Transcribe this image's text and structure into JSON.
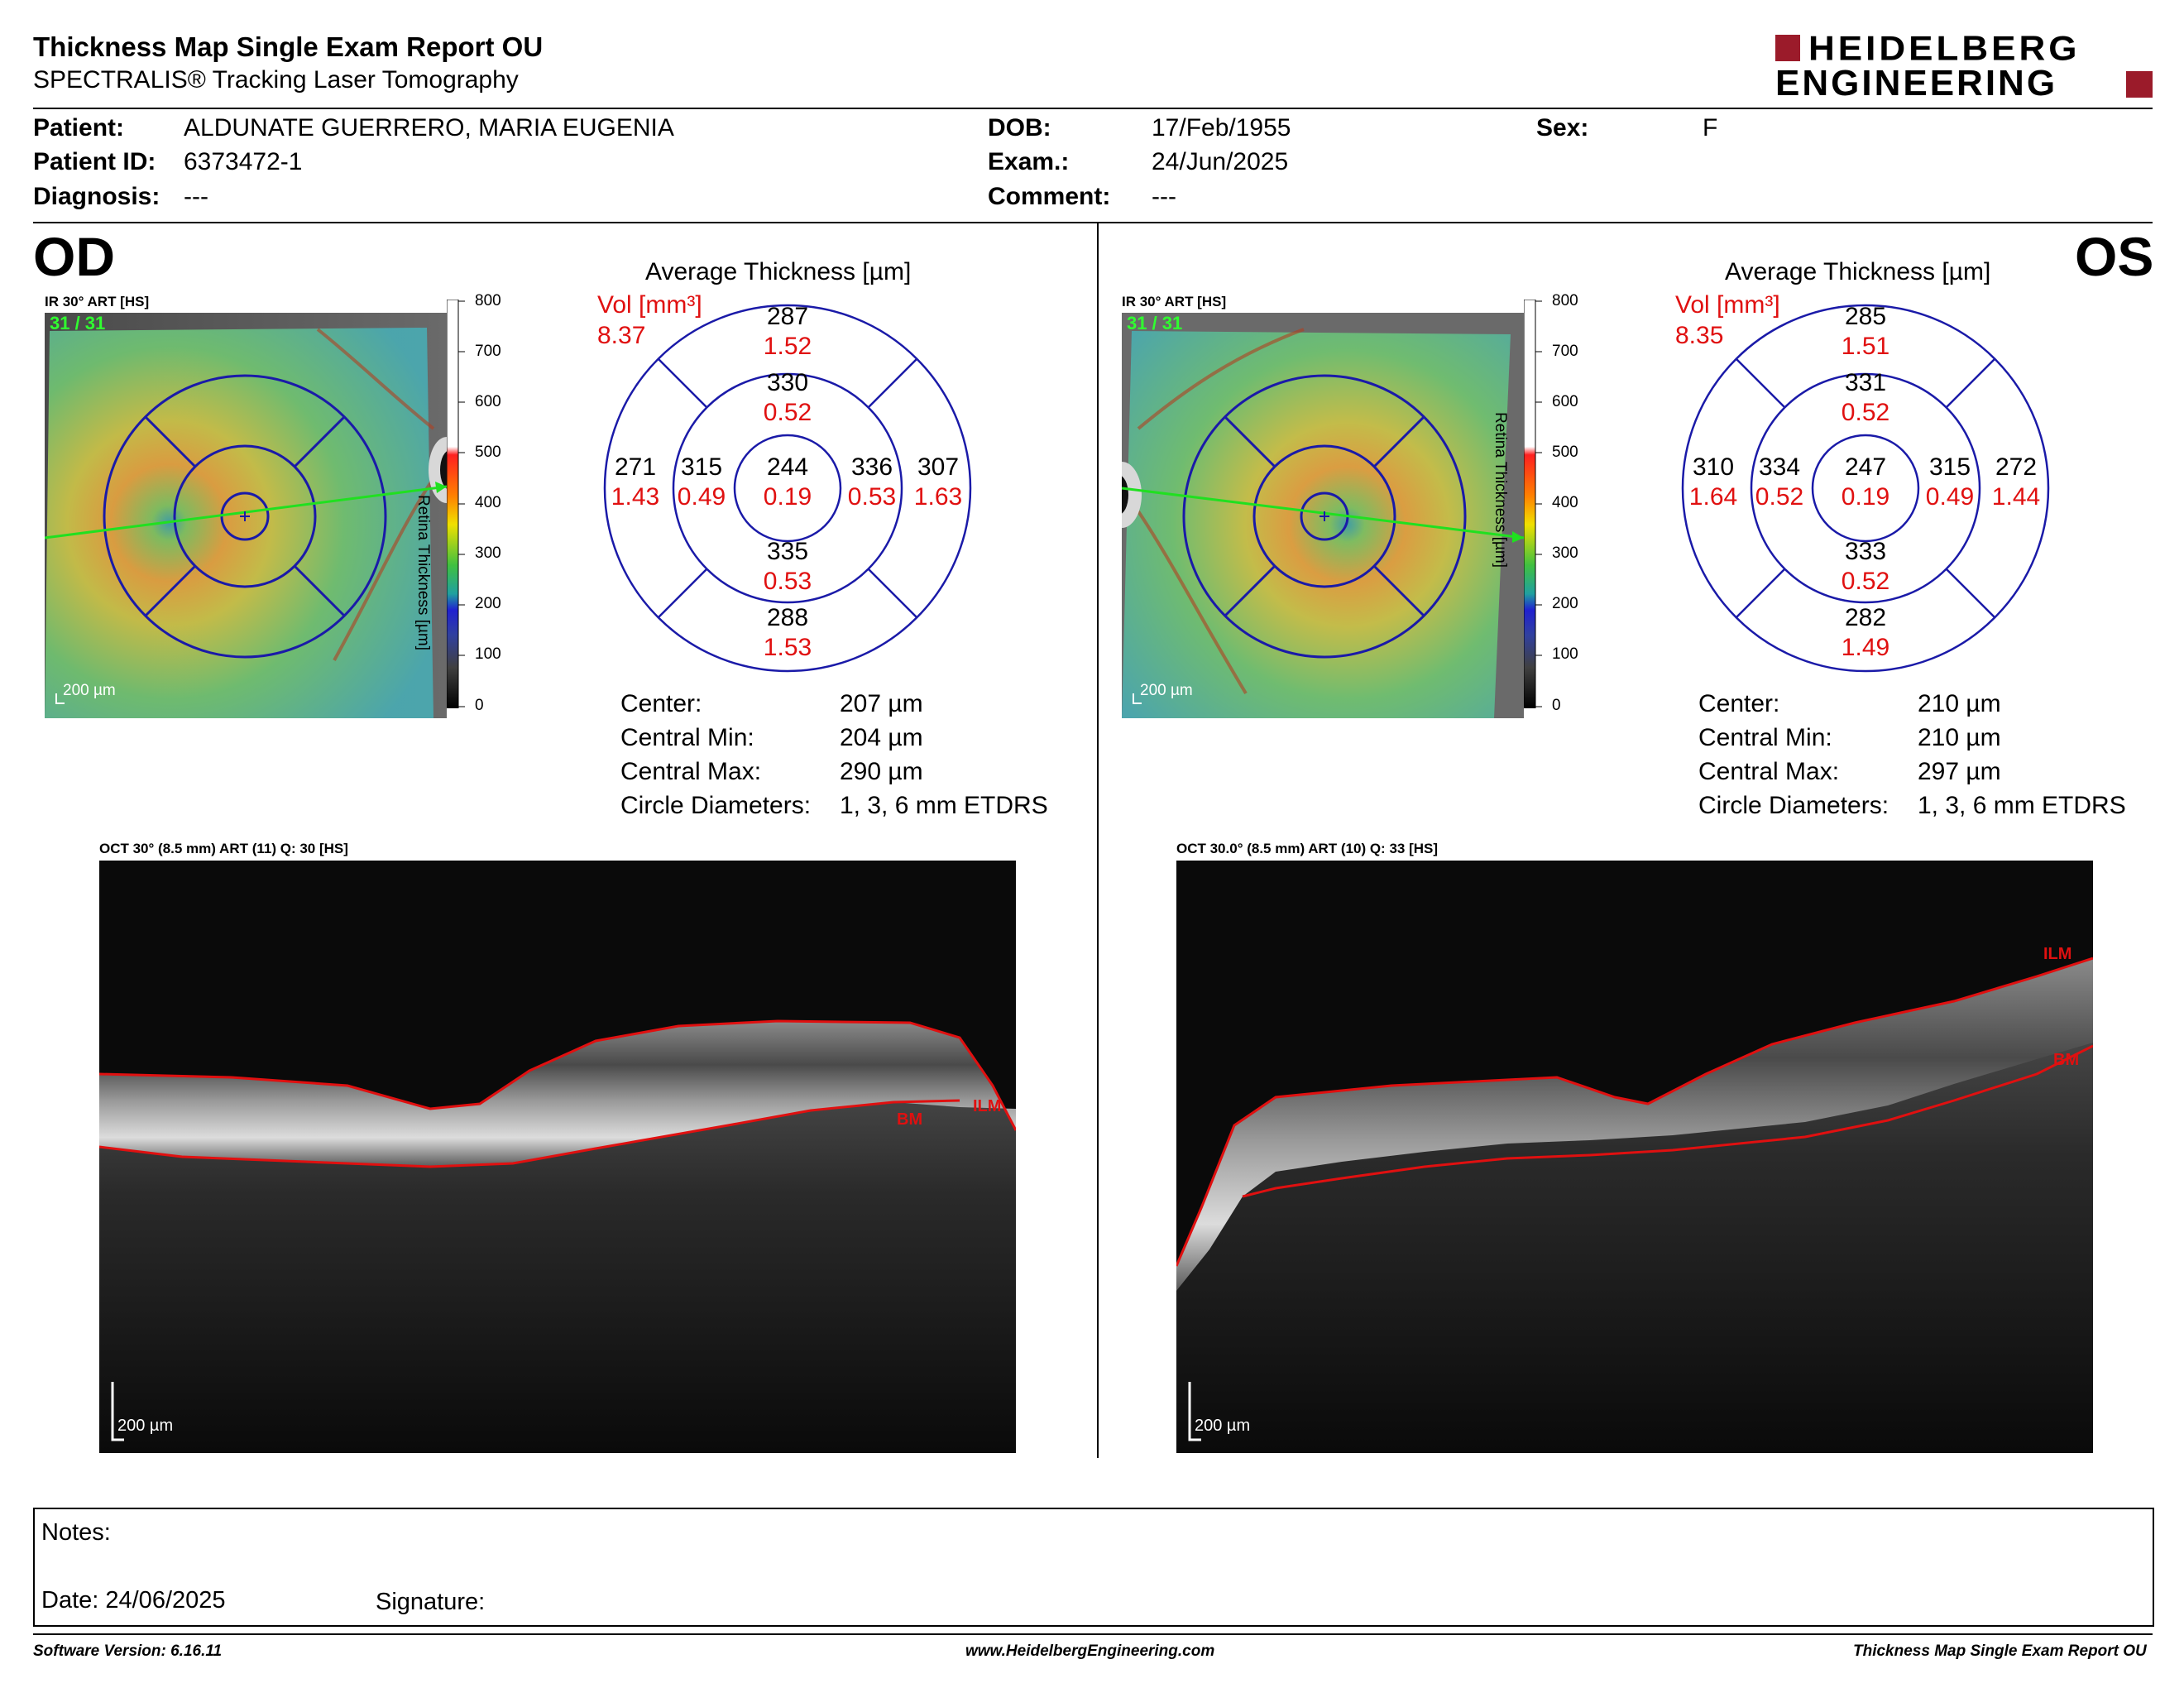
{
  "header": {
    "title": "Thickness Map Single Exam Report OU",
    "subtitle": "SPECTRALIS® Tracking Laser Tomography",
    "logo_line1": "HEIDELBERG",
    "logo_line2": "ENGINEERING"
  },
  "patient": {
    "patient_label": "Patient:",
    "patient_value": "ALDUNATE GUERRERO, MARIA EUGENIA",
    "id_label": "Patient ID:",
    "id_value": "6373472-1",
    "diagnosis_label": "Diagnosis:",
    "diagnosis_value": "---",
    "dob_label": "DOB:",
    "dob_value": "17/Feb/1955",
    "exam_label": "Exam.:",
    "exam_value": "24/Jun/2025",
    "comment_label": "Comment:",
    "comment_value": "---",
    "sex_label": "Sex:",
    "sex_value": "F"
  },
  "od": {
    "eye": "OD",
    "ir_label": "IR 30° ART [HS]",
    "ir_count": "31 / 31",
    "scale_label": "200 µm",
    "avg_title": "Average Thickness [µm]",
    "vol_label": "Vol [mm³]",
    "vol_value": "8.37",
    "sectors": {
      "center_t": "244",
      "center_v": "0.19",
      "inner_sup_t": "330",
      "inner_sup_v": "0.52",
      "inner_inf_t": "335",
      "inner_inf_v": "0.53",
      "inner_left_t": "315",
      "inner_left_v": "0.49",
      "inner_right_t": "336",
      "inner_right_v": "0.53",
      "outer_sup_t": "287",
      "outer_sup_v": "1.52",
      "outer_inf_t": "288",
      "outer_inf_v": "1.53",
      "outer_left_t": "271",
      "outer_left_v": "1.43",
      "outer_right_t": "307",
      "outer_right_v": "1.63"
    },
    "stats": {
      "center_label": "Center:",
      "center_value": "207 µm",
      "min_label": "Central Min:",
      "min_value": "204 µm",
      "max_label": "Central Max:",
      "max_value": "290 µm",
      "circ_label": "Circle Diameters:",
      "circ_value": "1, 3, 6 mm ETDRS"
    },
    "oct_label": "OCT 30° (8.5 mm) ART (11) Q: 30 [HS]",
    "oct_scale": "200 µm",
    "ilm": "ILM",
    "bm": "BM"
  },
  "os": {
    "eye": "OS",
    "ir_label": "IR 30° ART [HS]",
    "ir_count": "31 / 31",
    "scale_label": "200 µm",
    "avg_title": "Average Thickness [µm]",
    "vol_label": "Vol [mm³]",
    "vol_value": "8.35",
    "sectors": {
      "center_t": "247",
      "center_v": "0.19",
      "inner_sup_t": "331",
      "inner_sup_v": "0.52",
      "inner_inf_t": "333",
      "inner_inf_v": "0.52",
      "inner_left_t": "334",
      "inner_left_v": "0.52",
      "inner_right_t": "315",
      "inner_right_v": "0.49",
      "outer_sup_t": "285",
      "outer_sup_v": "1.51",
      "outer_inf_t": "282",
      "outer_inf_v": "1.49",
      "outer_left_t": "310",
      "outer_left_v": "1.64",
      "outer_right_t": "272",
      "outer_right_v": "1.44"
    },
    "stats": {
      "center_label": "Center:",
      "center_value": "210 µm",
      "min_label": "Central Min:",
      "min_value": "210 µm",
      "max_label": "Central Max:",
      "max_value": "297 µm",
      "circ_label": "Circle Diameters:",
      "circ_value": "1, 3, 6 mm ETDRS"
    },
    "oct_label": "OCT 30.0° (8.5 mm) ART (10) Q: 33 [HS]",
    "oct_scale": "200 µm",
    "ilm": "ILM",
    "bm": "BM"
  },
  "colorbar": {
    "ticks": [
      "800",
      "700",
      "600",
      "500",
      "400",
      "300",
      "200",
      "100",
      "0"
    ],
    "axis_label": "Retina  Thickness [µm]"
  },
  "notes": {
    "notes_label": "Notes:",
    "date_label": "Date: 24/06/2025",
    "signature_label": "Signature:"
  },
  "footer": {
    "software": "Software Version: 6.16.11",
    "website": "www.HeidelbergEngineering.com",
    "report": "Thickness Map Single Exam Report OU"
  },
  "colors": {
    "accent_red": "#e01010",
    "logo_red": "#9b1b2a",
    "etdrs_blue": "#1a1aa8"
  }
}
